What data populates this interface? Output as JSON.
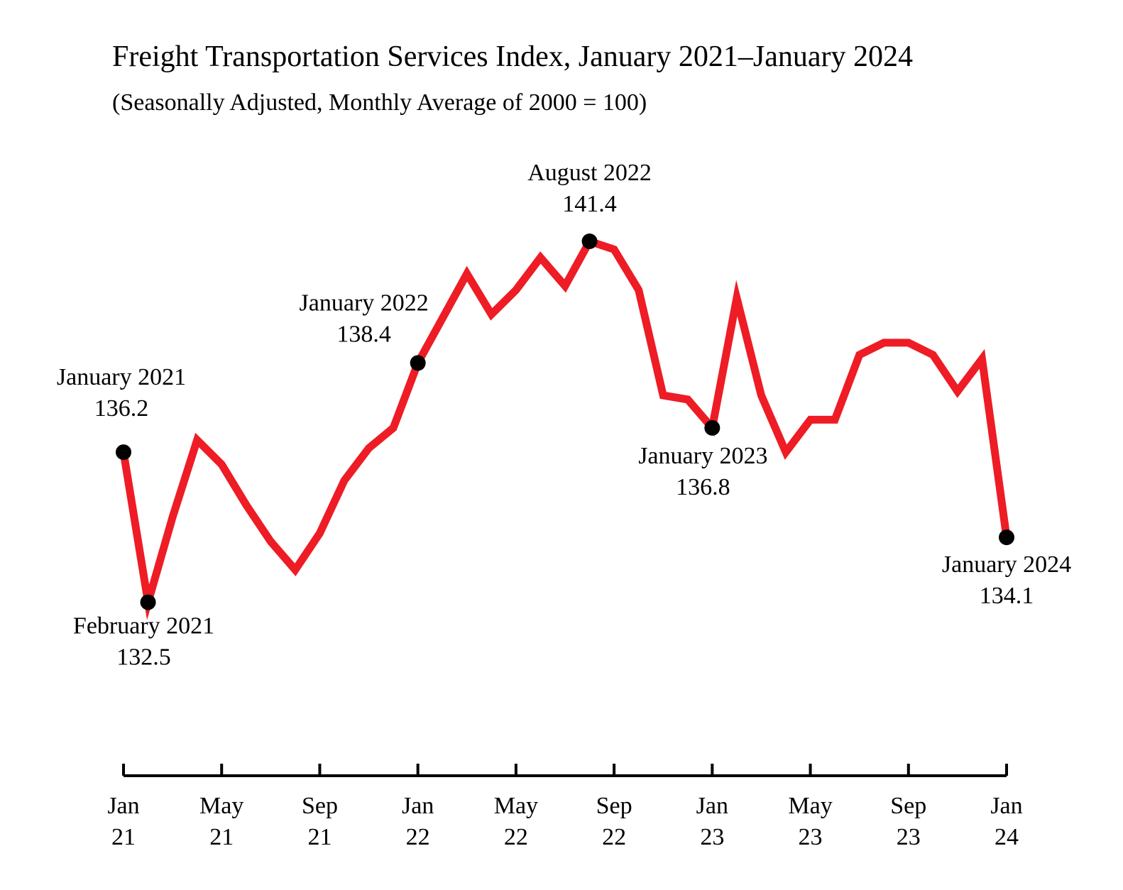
{
  "chart_data": {
    "type": "line",
    "title": "Freight Transportation Services Index, January 2021–January 2024",
    "subtitle": "(Seasonally Adjusted, Monthly Average of 2000 = 100)",
    "xlabel": "",
    "ylabel": "",
    "grid": false,
    "legend": "none",
    "ylim": [
      130.9,
      142.1
    ],
    "series": [
      {
        "color": "#ee1c25",
        "x": [
          "2021-01",
          "2021-02",
          "2021-03",
          "2021-04",
          "2021-05",
          "2021-06",
          "2021-07",
          "2021-08",
          "2021-09",
          "2021-10",
          "2021-11",
          "2021-12",
          "2022-01",
          "2022-02",
          "2022-03",
          "2022-04",
          "2022-05",
          "2022-06",
          "2022-07",
          "2022-08",
          "2022-09",
          "2022-10",
          "2022-11",
          "2022-12",
          "2023-01",
          "2023-02",
          "2023-03",
          "2023-04",
          "2023-05",
          "2023-06",
          "2023-07",
          "2023-08",
          "2023-09",
          "2023-10",
          "2023-11",
          "2023-12",
          "2024-01"
        ],
        "values": [
          136.2,
          132.5,
          134.6,
          136.5,
          135.9,
          134.9,
          134.0,
          133.3,
          134.2,
          135.5,
          136.3,
          136.8,
          138.4,
          139.5,
          140.6,
          139.6,
          140.2,
          141.0,
          140.3,
          141.4,
          141.2,
          140.2,
          137.6,
          137.5,
          136.8,
          140.0,
          137.6,
          136.2,
          137.0,
          137.0,
          138.6,
          138.9,
          138.9,
          138.6,
          137.7,
          138.5,
          134.1
        ]
      }
    ],
    "annotations": [
      {
        "x": "2021-01",
        "label": "January 2021",
        "value_label": "136.2"
      },
      {
        "x": "2021-02",
        "label": "February 2021",
        "value_label": "132.5"
      },
      {
        "x": "2022-01",
        "label": "January 2022",
        "value_label": "138.4"
      },
      {
        "x": "2022-08",
        "label": "August 2022",
        "value_label": "141.4"
      },
      {
        "x": "2023-01",
        "label": "January 2023",
        "value_label": "136.8"
      },
      {
        "x": "2024-01",
        "label": "January 2024",
        "value_label": "134.1"
      }
    ],
    "ticks": [
      {
        "x": "2021-01",
        "month": "Jan",
        "year": "21"
      },
      {
        "x": "2021-05",
        "month": "May",
        "year": "21"
      },
      {
        "x": "2021-09",
        "month": "Sep",
        "year": "21"
      },
      {
        "x": "2022-01",
        "month": "Jan",
        "year": "22"
      },
      {
        "x": "2022-05",
        "month": "May",
        "year": "22"
      },
      {
        "x": "2022-09",
        "month": "Sep",
        "year": "22"
      },
      {
        "x": "2023-01",
        "month": "Jan",
        "year": "23"
      },
      {
        "x": "2023-05",
        "month": "May",
        "year": "23"
      },
      {
        "x": "2023-09",
        "month": "Sep",
        "year": "23"
      },
      {
        "x": "2024-01",
        "month": "Jan",
        "year": "24"
      }
    ]
  }
}
